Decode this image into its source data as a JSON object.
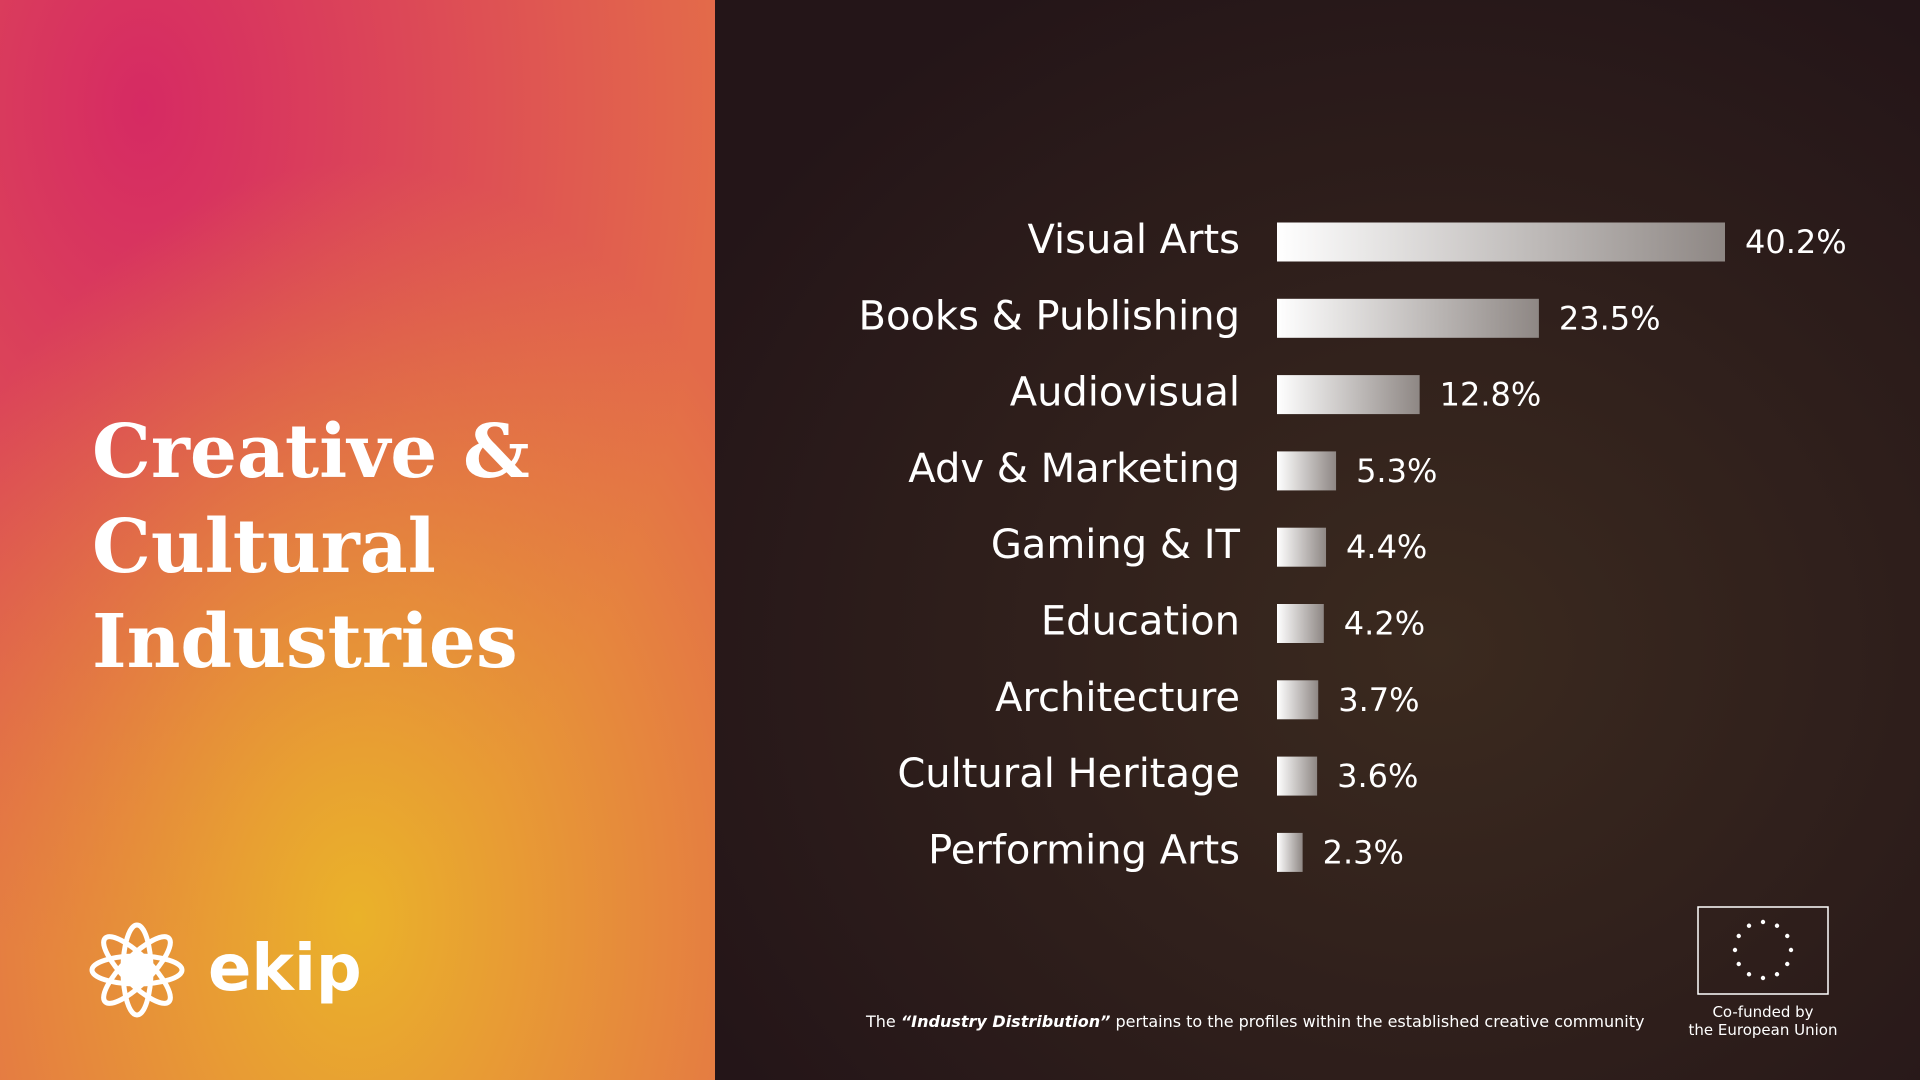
{
  "slide": {
    "title_lines": [
      "Creative &",
      "Cultural",
      "Industries"
    ],
    "logo": "ekip",
    "footnote": [
      "The",
      "“Industry Distribution”",
      "pertains to the profiles within the established creative community"
    ],
    "eu_label": [
      "Co-funded by",
      "the European Union"
    ]
  },
  "chart_data": {
    "type": "hbar",
    "categories": [
      "Visual Arts",
      "Books & Publishing",
      "Audiovisual",
      "Adv & Marketing",
      "Gaming & IT",
      "Education",
      "Architecture",
      "Cultural Heritage",
      "Performing Arts"
    ],
    "values": [
      40.2,
      23.5,
      12.8,
      5.3,
      4.4,
      4.2,
      3.7,
      3.6,
      2.3
    ],
    "value_labels": [
      "40.2%",
      "23.5%",
      "12.8%",
      "5.3%",
      "4.4%",
      "4.2%",
      "3.7%",
      "3.6%",
      "2.3%"
    ],
    "color": [
      "#ffffff",
      "#8e8784"
    ]
  }
}
